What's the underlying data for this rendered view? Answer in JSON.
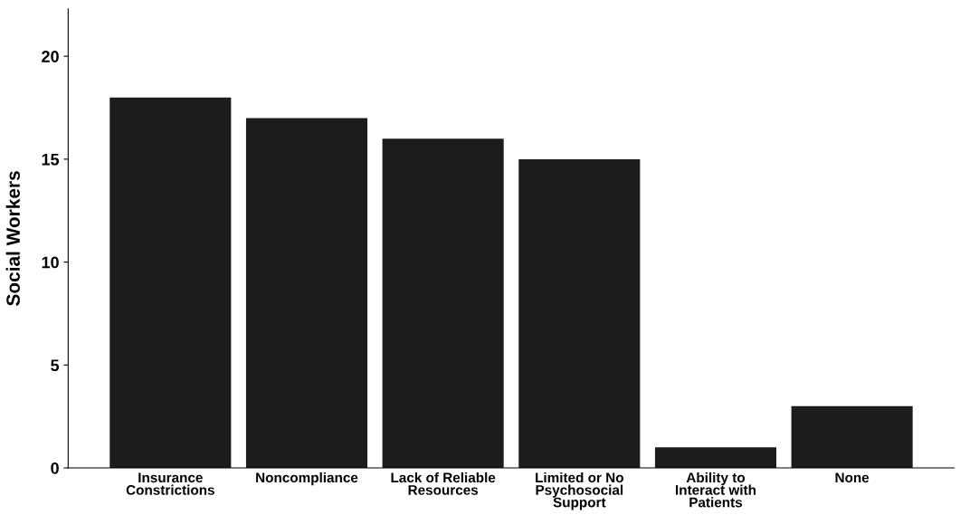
{
  "chart_data": {
    "type": "bar",
    "ylabel": "Social Workers",
    "categories": [
      "Insurance\nConstrictions",
      "Noncompliance",
      "Lack of Reliable\nResources",
      "Limited or No\nPsychosocial\nSupport",
      "Ability to\nInteract with\nPatients",
      "None"
    ],
    "values": [
      18,
      17,
      16,
      15,
      1,
      3
    ],
    "color": "#1c1c1c",
    "ylim": [
      0,
      22.3
    ],
    "yticks": [
      0,
      5,
      10,
      15,
      20
    ],
    "grid": false
  }
}
